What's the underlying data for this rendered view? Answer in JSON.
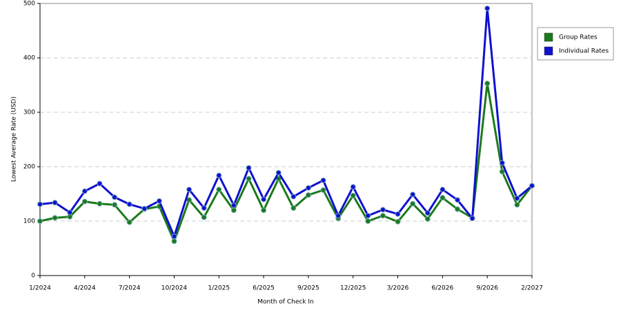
{
  "chart_data": {
    "type": "line",
    "y_label": "Lowest Average Rate (USD)",
    "x_label": "Month of Check In",
    "categories": [
      "1/2024",
      null,
      null,
      "4/2024",
      null,
      null,
      "7/2024",
      null,
      null,
      "10/2024",
      null,
      null,
      "1/2025",
      null,
      null,
      "6/2025",
      null,
      null,
      "9/2025",
      null,
      null,
      "12/2025",
      null,
      null,
      "3/2026",
      null,
      null,
      "6/2026",
      null,
      null,
      "9/2026",
      null,
      null,
      "2/2027"
    ],
    "series": [
      {
        "name": "Group Rates",
        "color": "#1a7a1a",
        "values": [
          100,
          106,
          108,
          136,
          132,
          130,
          98,
          122,
          127,
          63,
          139,
          107,
          158,
          120,
          178,
          120,
          178,
          124,
          148,
          157,
          105,
          147,
          100,
          110,
          99,
          132,
          104,
          143,
          122,
          106,
          353,
          191,
          130,
          165
        ]
      },
      {
        "name": "Individual Rates",
        "color": "#1010d0",
        "values": [
          131,
          134,
          116,
          155,
          169,
          144,
          131,
          123,
          137,
          72,
          158,
          124,
          184,
          129,
          198,
          140,
          189,
          145,
          161,
          175,
          110,
          163,
          110,
          121,
          113,
          149,
          115,
          158,
          139,
          105,
          491,
          207,
          142,
          165
        ]
      }
    ],
    "ylim": [
      0,
      500
    ],
    "yticks": [
      0,
      100,
      200,
      300,
      400,
      500
    ],
    "grid": true,
    "legend": "right"
  }
}
